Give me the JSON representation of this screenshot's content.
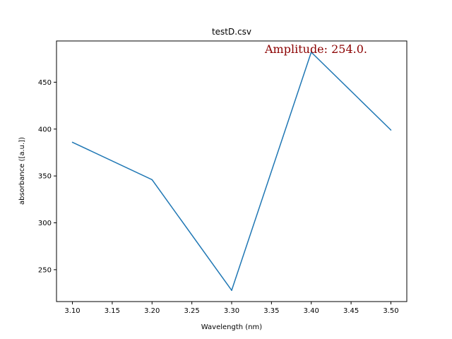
{
  "chart_data": {
    "type": "line",
    "title": "testD.csv",
    "xlabel": "Wavelength (nm)",
    "ylabel": "absorbance ([a.u.])",
    "x": [
      3.1,
      3.2,
      3.3,
      3.4,
      3.5
    ],
    "series": [
      {
        "values": [
          386,
          346,
          228,
          482,
          399
        ],
        "color": "#1f77b4"
      }
    ],
    "xlim": [
      3.08,
      3.52
    ],
    "ylim": [
      216,
      494
    ],
    "xticks": [
      "3.10",
      "3.15",
      "3.20",
      "3.25",
      "3.30",
      "3.35",
      "3.40",
      "3.45",
      "3.50"
    ],
    "yticks": [
      "250",
      "300",
      "350",
      "400",
      "450"
    ],
    "annotation": {
      "text": "Amplitude: 254.0.",
      "color": "#8b0000"
    },
    "grid": false
  }
}
